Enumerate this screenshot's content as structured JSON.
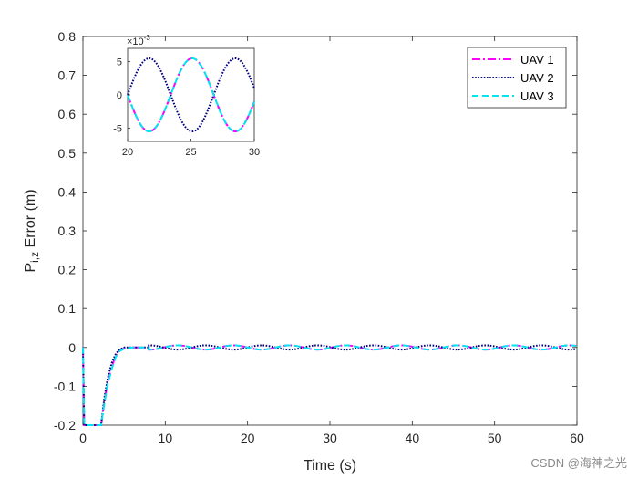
{
  "chart_data": {
    "type": "line",
    "xlabel": "Time (s)",
    "ylabel_main": "P",
    "ylabel_sub": "i,z",
    "ylabel_tail": " Error (m)",
    "xlim": [
      0,
      60
    ],
    "ylim": [
      -0.2,
      0.8
    ],
    "xticks": [
      0,
      10,
      20,
      30,
      40,
      50,
      60
    ],
    "yticks": [
      -0.2,
      -0.1,
      0,
      0.1,
      0.2,
      0.3,
      0.4,
      0.5,
      0.6,
      0.7,
      0.8
    ],
    "grid": false,
    "legend_position": "top-right",
    "series": [
      {
        "name": "UAV 1",
        "color": "#ff00ff",
        "style": "dashdot",
        "x": [
          0,
          0.15,
          2.2,
          2.6,
          3.0,
          3.5,
          4.0,
          4.5,
          5.0,
          6.0,
          8.0,
          60
        ],
        "y": [
          0,
          -0.2,
          -0.2,
          -0.14,
          -0.09,
          -0.05,
          -0.02,
          -0.007,
          -0.002,
          0,
          0,
          0
        ],
        "inset_phase": 3.14
      },
      {
        "name": "UAV 2",
        "color": "#000080",
        "style": "dotted",
        "x": [
          0,
          0.15,
          2.2,
          2.6,
          3.0,
          3.5,
          4.0,
          4.5,
          5.0,
          6.0,
          8.0,
          60
        ],
        "y": [
          0,
          -0.2,
          -0.2,
          -0.13,
          -0.08,
          -0.04,
          -0.016,
          -0.005,
          0,
          0,
          0,
          0
        ],
        "inset_phase": 0
      },
      {
        "name": "UAV 3",
        "color": "#00e5ee",
        "style": "dashed",
        "x": [
          0,
          0.15,
          2.2,
          2.6,
          3.0,
          3.5,
          4.0,
          4.5,
          5.0,
          6.0,
          8.0,
          60
        ],
        "y": [
          0,
          -0.2,
          -0.2,
          -0.145,
          -0.095,
          -0.055,
          -0.024,
          -0.009,
          -0.003,
          0,
          0,
          0
        ],
        "inset_phase": 3.14
      }
    ],
    "oscillation": {
      "amplitude": 0.0055,
      "period": 6.8,
      "start": 20
    },
    "inset": {
      "xlim": [
        20,
        30
      ],
      "ylim": [
        -7,
        7
      ],
      "xticks": [
        20,
        25,
        30
      ],
      "yticks": [
        -5,
        0,
        5
      ],
      "exponent_base": "×10",
      "exponent_power": "-3"
    }
  },
  "watermark": "CSDN @海神之光"
}
